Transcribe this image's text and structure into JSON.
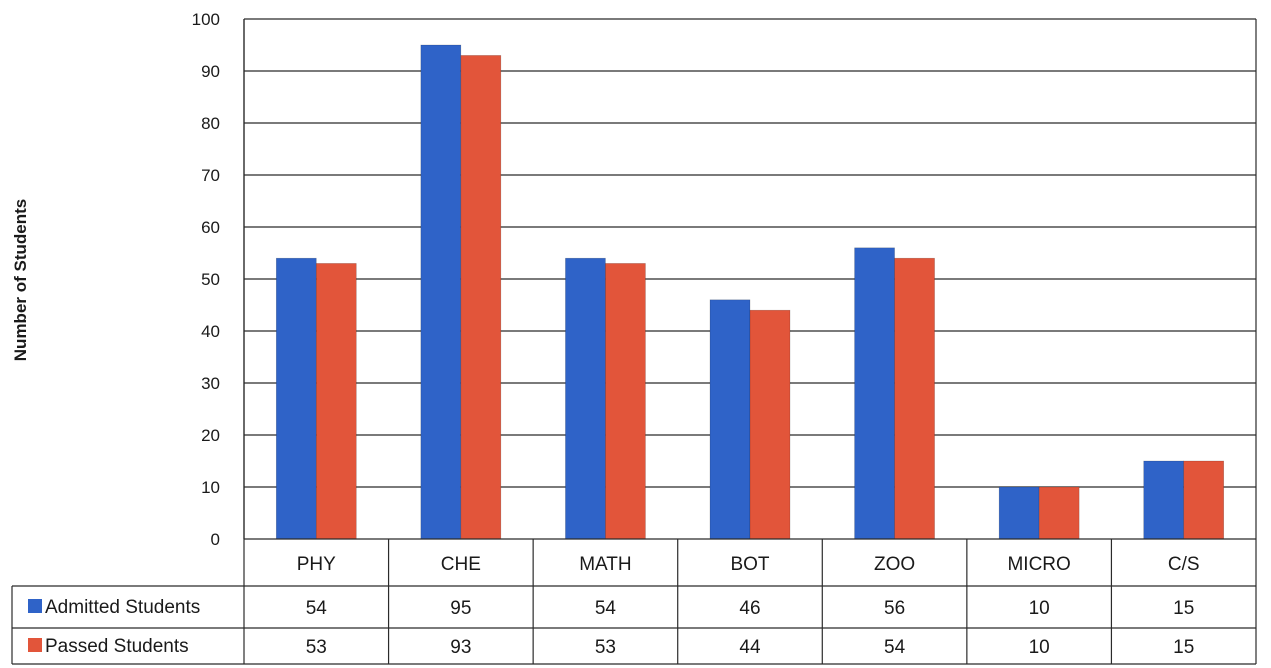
{
  "chart_data": {
    "type": "bar",
    "title": "",
    "xlabel": "",
    "ylabel": "Number of Students",
    "ylim": [
      0,
      100
    ],
    "yticks": [
      0,
      10,
      20,
      30,
      40,
      50,
      60,
      70,
      80,
      90,
      100
    ],
    "grid": true,
    "legend_placement": "data-table-left",
    "categories": [
      "PHY",
      "CHE",
      "MATH",
      "BOT",
      "ZOO",
      "MICRO",
      "C/S"
    ],
    "series": [
      {
        "name": "Admitted Students",
        "color": "#2f63c8",
        "values": [
          54,
          95,
          54,
          46,
          56,
          10,
          15
        ]
      },
      {
        "name": "Passed Students",
        "color": "#e2553a",
        "values": [
          53,
          93,
          53,
          44,
          54,
          10,
          15
        ]
      }
    ],
    "data_table": true
  }
}
